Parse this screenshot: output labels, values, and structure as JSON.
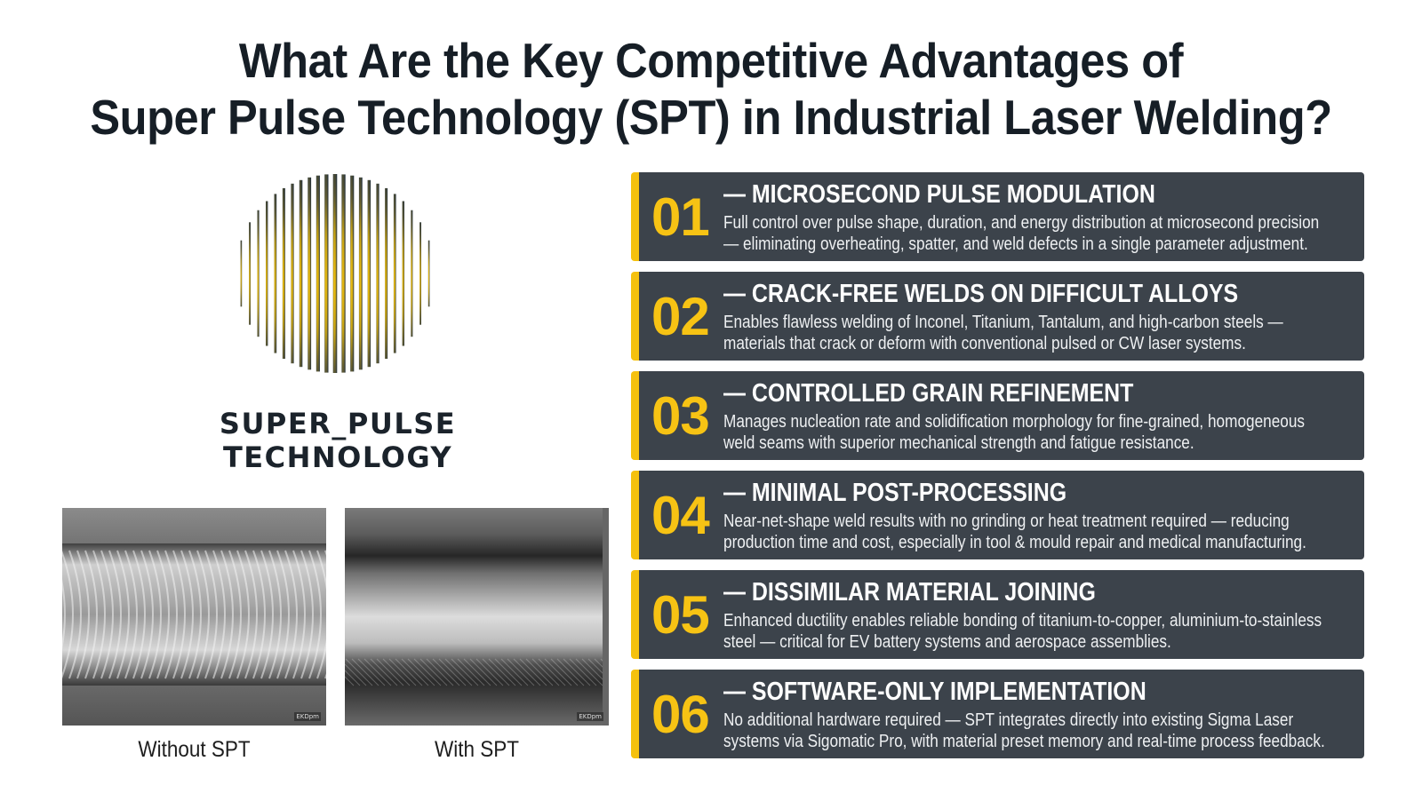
{
  "title": {
    "line1": "What Are the Key Competitive Advantages of",
    "line2": "Super Pulse Technology (SPT) in Industrial Laser Welding?"
  },
  "logo": {
    "icon": "striped-circle-logo-icon",
    "line1": "SUPER_PULSE",
    "line2": "TECHNOLOGY",
    "colors": {
      "accent": "#f3c20f",
      "dark": "#22303c"
    }
  },
  "comparison": [
    {
      "caption": "Without SPT",
      "scale_label": "EKDpm"
    },
    {
      "caption": "With SPT",
      "scale_label": "EKDpm"
    }
  ],
  "advantages": [
    {
      "number": "01",
      "title": "— MICROSECOND PULSE MODULATION",
      "line1": "Full control over pulse shape, duration, and energy distribution at microsecond precision",
      "line2": "— eliminating overheating, spatter, and weld defects in a single parameter adjustment."
    },
    {
      "number": "02",
      "title": "— CRACK-FREE WELDS ON DIFFICULT ALLOYS",
      "line1": "Enables flawless welding of Inconel, Titanium, Tantalum, and high-carbon steels —",
      "line2": "materials that crack or deform with conventional pulsed or CW laser systems."
    },
    {
      "number": "03",
      "title": "— CONTROLLED GRAIN REFINEMENT",
      "line1": "Manages nucleation rate and solidification morphology for fine-grained, homogeneous",
      "line2": "weld seams with superior mechanical strength and fatigue resistance."
    },
    {
      "number": "04",
      "title": "— MINIMAL POST-PROCESSING",
      "line1": "Near-net-shape weld results with no grinding or heat treatment required — reducing",
      "line2": "production time and cost, especially in tool & mould repair and medical manufacturing."
    },
    {
      "number": "05",
      "title": "— DISSIMILAR MATERIAL JOINING",
      "line1": "Enhanced ductility enables reliable bonding of titanium-to-copper, aluminium-to-stainless",
      "line2": "steel — critical for EV battery systems and aerospace assemblies."
    },
    {
      "number": "06",
      "title": "— SOFTWARE-ONLY IMPLEMENTATION",
      "line1": "No additional hardware required — SPT integrates directly into existing Sigma Laser",
      "line2": "systems via Sigomatic Pro, with material preset memory and real-time process feedback."
    }
  ],
  "colors": {
    "card_bg": "#3c434b",
    "card_accent": "#f5c10e",
    "number": "#f7c314",
    "title_text": "#161e26"
  }
}
